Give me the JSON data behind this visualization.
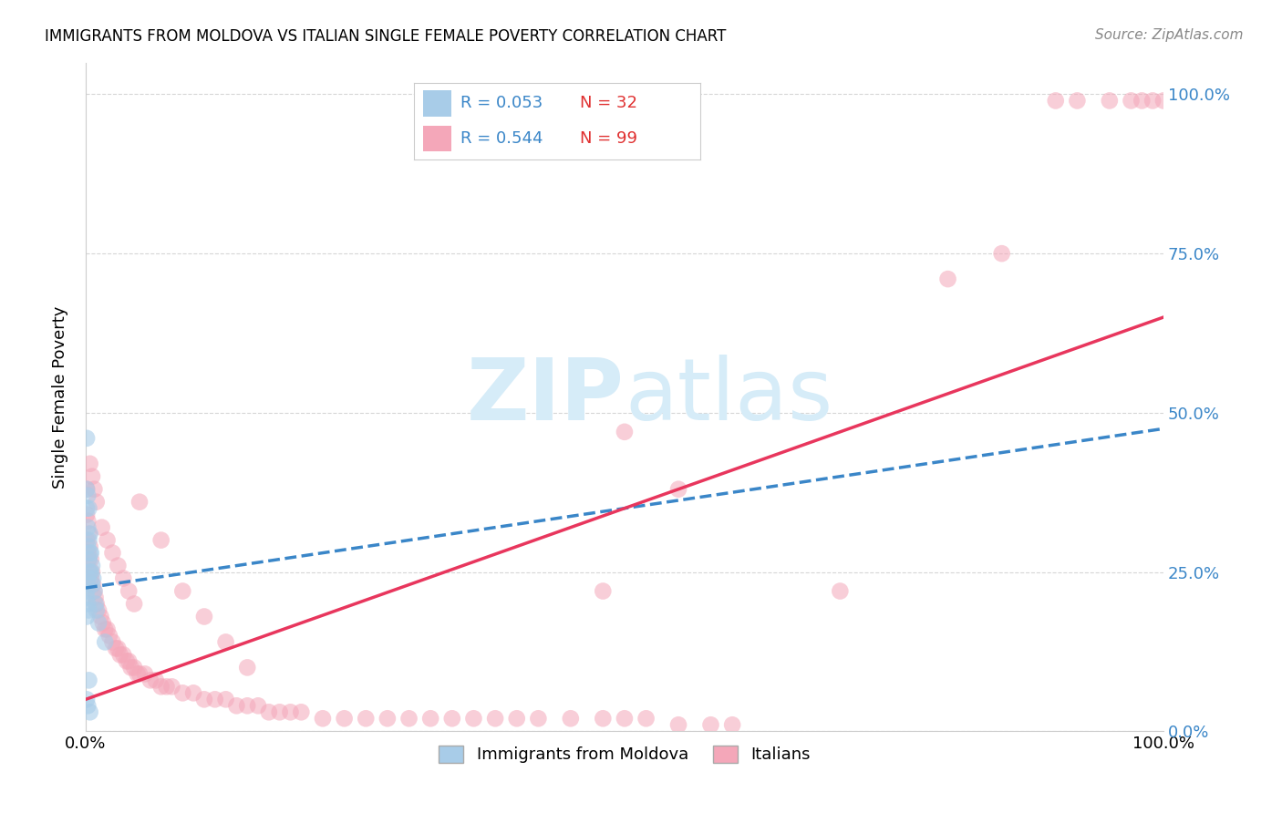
{
  "title": "IMMIGRANTS FROM MOLDOVA VS ITALIAN SINGLE FEMALE POVERTY CORRELATION CHART",
  "source": "Source: ZipAtlas.com",
  "ylabel": "Single Female Poverty",
  "legend_blue_r": "R = 0.053",
  "legend_blue_n": "N = 32",
  "legend_pink_r": "R = 0.544",
  "legend_pink_n": "N = 99",
  "legend_blue_label": "Immigrants from Moldova",
  "legend_pink_label": "Italians",
  "blue_color": "#a8cce8",
  "pink_color": "#f4a7b9",
  "trendline_blue_color": "#3a86c8",
  "trendline_pink_color": "#e8365d",
  "r_n_color": "#3a86c8",
  "n_value_color": "#e03030",
  "watermark_color": "#d6ecf8",
  "blue_scatter_x": [
    0.001,
    0.001,
    0.001,
    0.002,
    0.002,
    0.002,
    0.003,
    0.003,
    0.003,
    0.004,
    0.004,
    0.004,
    0.005,
    0.005,
    0.006,
    0.006,
    0.007,
    0.008,
    0.009,
    0.01,
    0.001,
    0.001,
    0.002,
    0.003,
    0.001,
    0.002,
    0.003,
    0.004,
    0.012,
    0.018,
    0.001,
    0.002
  ],
  "blue_scatter_y": [
    0.46,
    0.38,
    0.35,
    0.37,
    0.32,
    0.29,
    0.35,
    0.3,
    0.27,
    0.31,
    0.28,
    0.25,
    0.28,
    0.25,
    0.26,
    0.23,
    0.24,
    0.22,
    0.2,
    0.19,
    0.22,
    0.21,
    0.2,
    0.19,
    0.05,
    0.04,
    0.08,
    0.03,
    0.17,
    0.14,
    0.18,
    0.24
  ],
  "pink_scatter_x": [
    0.001,
    0.001,
    0.001,
    0.002,
    0.002,
    0.003,
    0.003,
    0.004,
    0.004,
    0.005,
    0.005,
    0.006,
    0.007,
    0.008,
    0.009,
    0.01,
    0.012,
    0.014,
    0.016,
    0.018,
    0.02,
    0.022,
    0.025,
    0.028,
    0.03,
    0.032,
    0.035,
    0.038,
    0.04,
    0.042,
    0.045,
    0.048,
    0.05,
    0.055,
    0.06,
    0.065,
    0.07,
    0.075,
    0.08,
    0.09,
    0.1,
    0.11,
    0.12,
    0.13,
    0.14,
    0.15,
    0.16,
    0.17,
    0.18,
    0.19,
    0.2,
    0.22,
    0.24,
    0.26,
    0.28,
    0.3,
    0.32,
    0.34,
    0.36,
    0.38,
    0.4,
    0.42,
    0.45,
    0.48,
    0.5,
    0.52,
    0.55,
    0.58,
    0.6,
    0.004,
    0.006,
    0.008,
    0.01,
    0.015,
    0.02,
    0.025,
    0.03,
    0.035,
    0.04,
    0.045,
    0.05,
    0.07,
    0.09,
    0.11,
    0.13,
    0.15,
    0.5,
    0.55,
    0.7,
    0.8,
    0.85,
    0.9,
    0.92,
    0.95,
    0.97,
    0.98,
    0.99,
    1.0,
    0.48
  ],
  "pink_scatter_y": [
    0.38,
    0.34,
    0.3,
    0.33,
    0.28,
    0.31,
    0.27,
    0.29,
    0.25,
    0.27,
    0.24,
    0.25,
    0.23,
    0.22,
    0.21,
    0.2,
    0.19,
    0.18,
    0.17,
    0.16,
    0.16,
    0.15,
    0.14,
    0.13,
    0.13,
    0.12,
    0.12,
    0.11,
    0.11,
    0.1,
    0.1,
    0.09,
    0.09,
    0.09,
    0.08,
    0.08,
    0.07,
    0.07,
    0.07,
    0.06,
    0.06,
    0.05,
    0.05,
    0.05,
    0.04,
    0.04,
    0.04,
    0.03,
    0.03,
    0.03,
    0.03,
    0.02,
    0.02,
    0.02,
    0.02,
    0.02,
    0.02,
    0.02,
    0.02,
    0.02,
    0.02,
    0.02,
    0.02,
    0.02,
    0.02,
    0.02,
    0.01,
    0.01,
    0.01,
    0.42,
    0.4,
    0.38,
    0.36,
    0.32,
    0.3,
    0.28,
    0.26,
    0.24,
    0.22,
    0.2,
    0.36,
    0.3,
    0.22,
    0.18,
    0.14,
    0.1,
    0.47,
    0.38,
    0.22,
    0.71,
    0.75,
    0.99,
    0.99,
    0.99,
    0.99,
    0.99,
    0.99,
    0.99,
    0.22
  ],
  "blue_trend_x": [
    0.0,
    1.0
  ],
  "blue_trend_y": [
    0.225,
    0.475
  ],
  "pink_trend_x": [
    0.0,
    1.0
  ],
  "pink_trend_y": [
    0.05,
    0.65
  ],
  "xlim": [
    0.0,
    1.0
  ],
  "ylim": [
    0.0,
    1.05
  ],
  "yticks": [
    0.0,
    0.25,
    0.5,
    0.75,
    1.0
  ],
  "ytick_labels": [
    "0.0%",
    "25.0%",
    "50.0%",
    "75.0%",
    "100.0%"
  ],
  "xtick_labels": [
    "0.0%",
    "100.0%"
  ],
  "grid_color": "#cccccc",
  "spine_color": "#cccccc"
}
